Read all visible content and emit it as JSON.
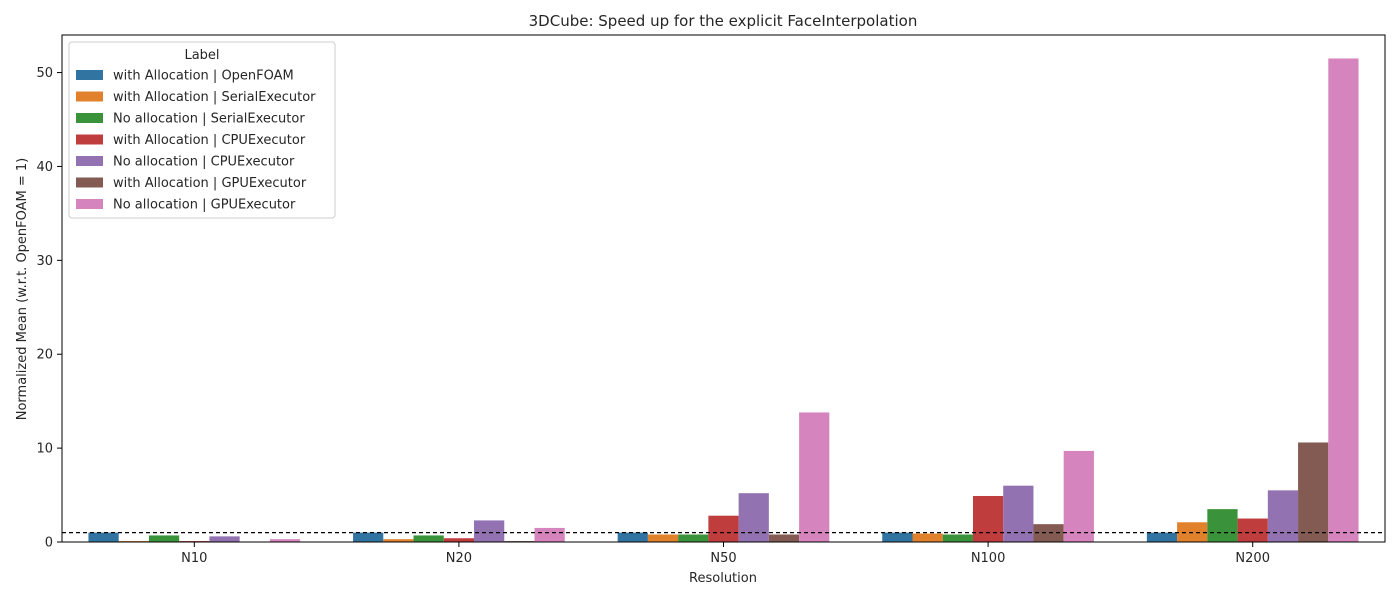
{
  "chart_data": {
    "type": "bar",
    "title": "3DCube: Speed up for the explicit FaceInterpolation",
    "xlabel": "Resolution",
    "ylabel": "Normalized Mean (w.r.t. OpenFOAM = 1)",
    "categories": [
      "N10",
      "N20",
      "N50",
      "N100",
      "N200"
    ],
    "ylim": [
      0,
      54
    ],
    "yticks": [
      0,
      10,
      20,
      30,
      40,
      50
    ],
    "reference_line": 1,
    "legend": {
      "title": "Label",
      "placement": "top-left"
    },
    "series": [
      {
        "name": "with Allocation | OpenFOAM",
        "color": "#3274a1",
        "values": [
          1.0,
          1.0,
          1.0,
          1.0,
          1.0
        ]
      },
      {
        "name": "with Allocation | SerialExecutor",
        "color": "#e1812c",
        "values": [
          0.1,
          0.3,
          0.8,
          0.9,
          2.1
        ]
      },
      {
        "name": "No allocation | SerialExecutor",
        "color": "#3a923a",
        "values": [
          0.7,
          0.7,
          0.8,
          0.8,
          3.5
        ]
      },
      {
        "name": "with Allocation | CPUExecutor",
        "color": "#c03d3e",
        "values": [
          0.1,
          0.4,
          2.8,
          4.9,
          2.5
        ]
      },
      {
        "name": "No allocation | CPUExecutor",
        "color": "#9372b2",
        "values": [
          0.6,
          2.3,
          5.2,
          6.0,
          5.5
        ]
      },
      {
        "name": "with Allocation | GPUExecutor",
        "color": "#845b53",
        "values": [
          0.0,
          0.1,
          0.8,
          1.9,
          10.6
        ]
      },
      {
        "name": "No allocation | GPUExecutor",
        "color": "#d684bd",
        "values": [
          0.3,
          1.5,
          13.8,
          9.7,
          51.5
        ]
      }
    ]
  }
}
